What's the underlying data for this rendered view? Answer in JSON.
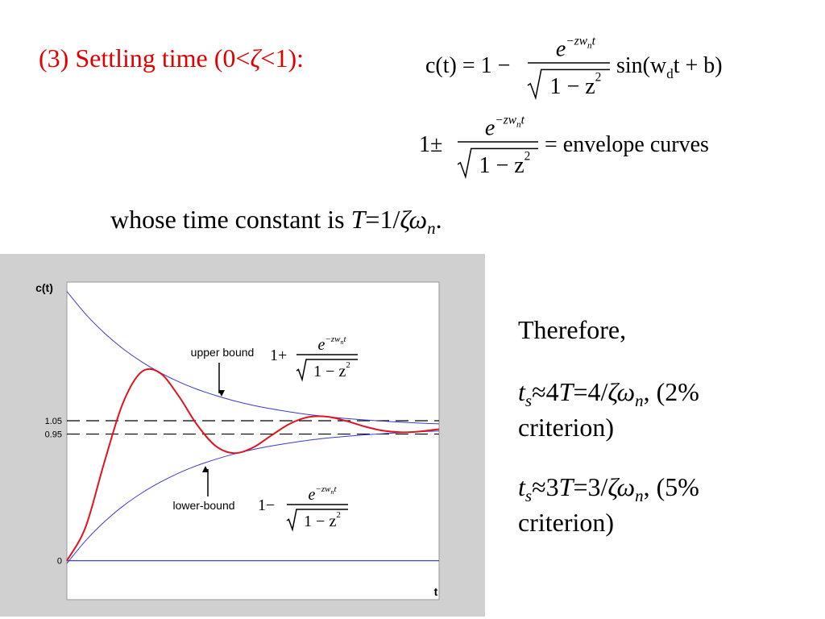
{
  "heading": [
    "(3) Settling time (0<",
    "ζ",
    "<1):"
  ],
  "formulas": {
    "response": {
      "lhs": "c(t) = 1 −",
      "num": "e",
      "num_exp": "−zw",
      "num_exp_sub": "n",
      "num_exp_tail": "t",
      "den": "1 − z",
      "den_exp": "2",
      "rhs": "sin(w",
      "rhs_sub": "d",
      "rhs_tail": "t + b)"
    },
    "envelope": {
      "lhs": "1±",
      "num": "e",
      "num_exp": "−zw",
      "num_exp_sub": "n",
      "num_exp_tail": "t",
      "den": "1 − z",
      "den_exp": "2",
      "rhs": "= envelope curves"
    }
  },
  "time_constant": [
    "whose time constant is ",
    "T",
    "=1/",
    "ζω",
    "n",
    "."
  ],
  "therefore": "Therefore,",
  "conclusions": [
    [
      "t",
      "s",
      "≈4",
      "T",
      "=4/",
      "ζω",
      "n",
      ", (2%",
      "criterion)"
    ],
    [
      "t",
      "s",
      "≈3",
      "T",
      "=3/",
      "ζω",
      "n",
      ", (5%",
      "criterion)"
    ]
  ],
  "chart_data": {
    "type": "line",
    "y_label": "c(t)",
    "x_label": "t",
    "xlim": [
      0,
      10
    ],
    "ylim": [
      -0.28,
      2.09
    ],
    "yticks": [
      1.05,
      0.95,
      0
    ],
    "tick_line_styles": [
      "dashed",
      "dashed",
      "solid"
    ],
    "tick_line_colors": [
      "#000000",
      "#000000",
      "#2b2bd6"
    ],
    "x": [
      0,
      0.5,
      1,
      1.5,
      2,
      2.5,
      3,
      3.5,
      4,
      4.5,
      5,
      5.5,
      6,
      6.5,
      7,
      7.5,
      8,
      8.5,
      9,
      9.5,
      10
    ],
    "series": [
      {
        "color": "#3a3ad0",
        "values": [
          2.02,
          1.851,
          1.71,
          1.592,
          1.494,
          1.412,
          1.343,
          1.286,
          1.239,
          1.199,
          1.166,
          1.139,
          1.116,
          1.096,
          1.08,
          1.067,
          1.056,
          1.047,
          1.039,
          1.032,
          1.027
        ]
      },
      {
        "color": "#3a3ad0",
        "values": [
          -0.02,
          0.149,
          0.29,
          0.408,
          0.506,
          0.588,
          0.657,
          0.714,
          0.761,
          0.801,
          0.834,
          0.861,
          0.884,
          0.904,
          0.92,
          0.933,
          0.944,
          0.953,
          0.961,
          0.968,
          0.973
        ]
      },
      {
        "color": "#e0141e",
        "values": [
          0,
          0.25,
          0.732,
          1.178,
          1.415,
          1.409,
          1.237,
          1.019,
          0.86,
          0.807,
          0.849,
          0.941,
          1.029,
          1.078,
          1.08,
          1.049,
          1.007,
          0.975,
          0.963,
          0.97,
          0.987
        ]
      }
    ],
    "annotations": {
      "upper_label": "upper bound",
      "upper_formula": {
        "lead": "1+",
        "num": "e",
        "num_exp": "−zw",
        "num_exp_sub": "n",
        "num_exp_tail": "t",
        "den": "1 − z",
        "den_exp": "2"
      },
      "lower_label": "lower-bound",
      "lower_formula": {
        "lead": "1−",
        "num": "e",
        "num_exp": "−zw",
        "num_exp_sub": "n",
        "num_exp_tail": "t",
        "den": "1 − z",
        "den_exp": "2"
      }
    }
  }
}
